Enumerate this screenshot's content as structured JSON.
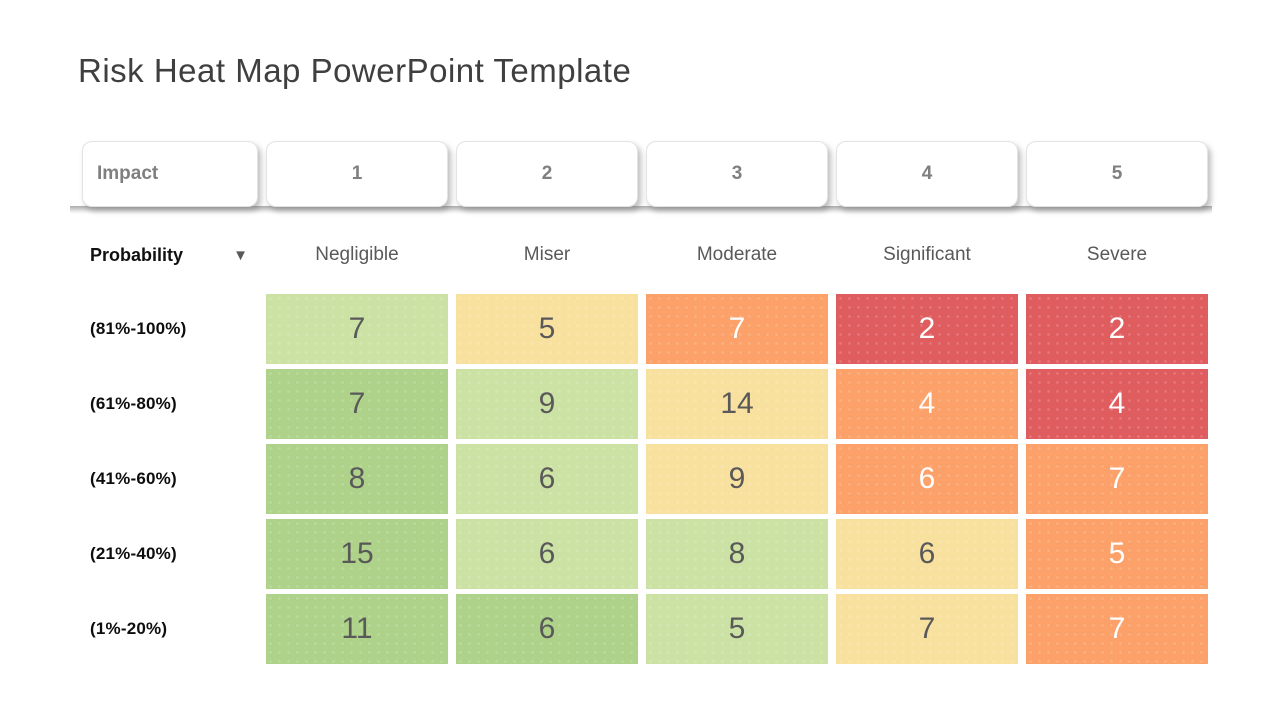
{
  "page": {
    "title": "Risk Heat Map PowerPoint Template"
  },
  "tabs": {
    "labels": [
      "Impact",
      "1",
      "2",
      "3",
      "4",
      "5"
    ]
  },
  "header": {
    "probability_label": "Probability",
    "impact_labels": [
      "Negligible",
      "Miser",
      "Moderate",
      "Significant",
      "Severe"
    ]
  },
  "icons": {
    "probability_dropdown_glyph": "▼"
  },
  "colors": {
    "green_dark": "#aed289",
    "green_light": "#cbe2a4",
    "yellow": "#f8e09e",
    "orange": "#fba169",
    "red": "#df5c5f",
    "cell_text_dark": "#595959",
    "cell_text_light": "#ffffff",
    "title_text": "#3f3f3f",
    "tab_text": "#7f7f7f"
  },
  "chart_data": {
    "type": "heatmap",
    "title": "Risk Heat Map PowerPoint Template",
    "x_axis_label": "Impact",
    "y_axis_label": "Probability",
    "x_categories": [
      "1",
      "2",
      "3",
      "4",
      "5"
    ],
    "x_category_names": [
      "Negligible",
      "Miser",
      "Moderate",
      "Significant",
      "Severe"
    ],
    "y_categories": [
      "(81%-100%)",
      "(61%-80%)",
      "(41%-60%)",
      "(21%-40%)",
      "(1%-20%)"
    ],
    "values": [
      [
        7,
        5,
        7,
        2,
        2
      ],
      [
        7,
        9,
        14,
        4,
        4
      ],
      [
        8,
        6,
        9,
        6,
        7
      ],
      [
        15,
        6,
        8,
        6,
        5
      ],
      [
        11,
        6,
        5,
        7,
        7
      ]
    ],
    "cell_colors": [
      [
        "green_light",
        "yellow",
        "orange",
        "red",
        "red"
      ],
      [
        "green_dark",
        "green_light",
        "yellow",
        "orange",
        "red"
      ],
      [
        "green_dark",
        "green_light",
        "yellow",
        "orange",
        "orange"
      ],
      [
        "green_dark",
        "green_light",
        "green_light",
        "yellow",
        "orange"
      ],
      [
        "green_dark",
        "green_dark",
        "green_light",
        "yellow",
        "orange"
      ]
    ],
    "legend": "off",
    "grid": "off"
  }
}
